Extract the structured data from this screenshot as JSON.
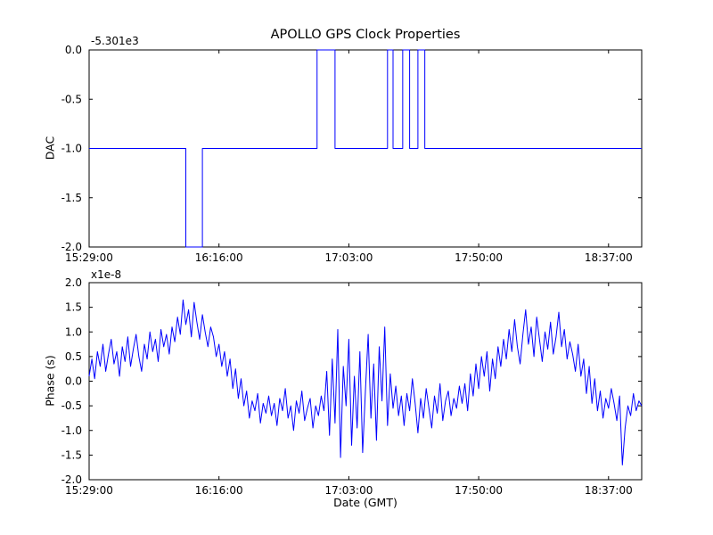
{
  "figure": {
    "title": "APOLLO GPS Clock Properties",
    "background": "#ffffff",
    "line_color": "#0000ff",
    "axis_color": "#000000"
  },
  "chart_data": [
    {
      "type": "line",
      "subplot": "top",
      "title": "APOLLO GPS Clock Properties",
      "ylabel": "DAC",
      "xlabel": "",
      "offset_text": "-5.301e3",
      "x_unit": "minutes after 15:29:00 GMT",
      "xlim": [
        0,
        200
      ],
      "ylim": [
        -2.0,
        0.0
      ],
      "yticks": [
        0.0,
        -0.5,
        -1.0,
        -1.5,
        -2.0
      ],
      "ytick_labels": [
        "0.0",
        "-0.5",
        "-1.0",
        "-1.5",
        "-2.0"
      ],
      "xticks": [
        0,
        47,
        94,
        141,
        188
      ],
      "xtick_labels": [
        "15:29:00",
        "16:16:00",
        "17:03:00",
        "17:50:00",
        "18:37:00"
      ],
      "grid": false,
      "legend": "none",
      "points": [
        [
          0,
          -1.0
        ],
        [
          35,
          -1.0
        ],
        [
          35,
          -2.0
        ],
        [
          41,
          -2.0
        ],
        [
          41,
          -1.0
        ],
        [
          82.5,
          -1.0
        ],
        [
          82.5,
          0.0
        ],
        [
          89,
          0.0
        ],
        [
          89,
          -1.0
        ],
        [
          108,
          -1.0
        ],
        [
          108,
          0.0
        ],
        [
          110,
          0.0
        ],
        [
          110,
          -1.0
        ],
        [
          113.5,
          -1.0
        ],
        [
          113.5,
          0.0
        ],
        [
          116,
          0.0
        ],
        [
          116,
          -1.0
        ],
        [
          119,
          -1.0
        ],
        [
          119,
          0.0
        ],
        [
          121.5,
          0.0
        ],
        [
          121.5,
          -1.0
        ],
        [
          200,
          -1.0
        ]
      ]
    },
    {
      "type": "line",
      "subplot": "bottom",
      "title": "",
      "ylabel": "Phase (s)",
      "xlabel": "Date (GMT)",
      "offset_text": "x1e-8",
      "x_unit": "minutes after 15:29:00 GMT",
      "x_step": 1,
      "xlim": [
        0,
        200
      ],
      "ylim": [
        -2.0,
        2.0
      ],
      "yticks": [
        2.0,
        1.5,
        1.0,
        0.5,
        0.0,
        -0.5,
        -1.0,
        -1.5,
        -2.0
      ],
      "ytick_labels": [
        "2.0",
        "1.5",
        "1.0",
        "0.5",
        "0.0",
        "-0.5",
        "-1.0",
        "-1.5",
        "-2.0"
      ],
      "xticks": [
        0,
        47,
        94,
        141,
        188
      ],
      "xtick_labels": [
        "15:29:00",
        "16:16:00",
        "17:03:00",
        "17:50:00",
        "18:37:00"
      ],
      "grid": false,
      "legend": "none",
      "values": [
        0.1,
        0.45,
        0.05,
        0.6,
        0.3,
        0.75,
        0.2,
        0.55,
        0.85,
        0.35,
        0.6,
        0.1,
        0.7,
        0.4,
        0.9,
        0.3,
        0.65,
        0.95,
        0.5,
        0.2,
        0.75,
        0.45,
        1.0,
        0.6,
        0.85,
        0.4,
        1.05,
        0.7,
        0.95,
        0.55,
        1.1,
        0.8,
        1.3,
        0.95,
        1.65,
        1.15,
        1.45,
        0.9,
        1.6,
        1.2,
        0.85,
        1.35,
        1.0,
        0.7,
        1.1,
        0.9,
        0.5,
        0.75,
        0.3,
        0.6,
        0.1,
        0.45,
        -0.15,
        0.25,
        -0.35,
        0.05,
        -0.5,
        -0.2,
        -0.75,
        -0.4,
        -0.6,
        -0.25,
        -0.85,
        -0.45,
        -0.65,
        -0.3,
        -0.7,
        -0.45,
        -0.9,
        -0.35,
        -0.6,
        -0.15,
        -0.75,
        -0.5,
        -1.0,
        -0.4,
        -0.65,
        -0.2,
        -0.8,
        -0.55,
        -0.35,
        -0.95,
        -0.5,
        -0.7,
        -0.3,
        -0.6,
        0.2,
        -1.1,
        0.45,
        -0.85,
        1.05,
        -1.55,
        0.3,
        -0.5,
        0.85,
        -1.3,
        0.1,
        -0.95,
        0.6,
        -1.45,
        -0.2,
        0.95,
        -0.75,
        0.35,
        -1.2,
        0.7,
        -0.4,
        1.1,
        -0.9,
        0.15,
        -0.55,
        -0.1,
        -0.7,
        -0.3,
        -0.9,
        -0.25,
        -0.6,
        0.05,
        -0.45,
        -1.05,
        -0.35,
        -0.75,
        -0.15,
        -0.55,
        -0.95,
        -0.3,
        -0.65,
        -0.05,
        -0.8,
        -0.4,
        -0.2,
        -0.7,
        -0.35,
        -0.55,
        -0.1,
        -0.45,
        -0.05,
        -0.6,
        0.15,
        -0.3,
        0.35,
        -0.15,
        0.5,
        0.1,
        0.6,
        -0.2,
        0.45,
        0.05,
        0.7,
        0.3,
        0.85,
        0.45,
        1.05,
        0.6,
        1.25,
        0.7,
        0.35,
        0.95,
        1.45,
        0.75,
        1.1,
        0.5,
        1.3,
        0.85,
        0.4,
        1.0,
        0.65,
        1.2,
        0.55,
        0.9,
        1.4,
        0.7,
        1.05,
        0.45,
        0.8,
        0.55,
        0.2,
        0.75,
        0.1,
        0.45,
        -0.25,
        0.3,
        -0.45,
        0.05,
        -0.6,
        -0.2,
        -0.75,
        -0.35,
        -0.55,
        -0.15,
        -0.45,
        -0.8,
        -0.3,
        -1.7,
        -0.95,
        -0.5,
        -0.7,
        -0.25,
        -0.6,
        -0.4,
        -0.5
      ]
    }
  ]
}
